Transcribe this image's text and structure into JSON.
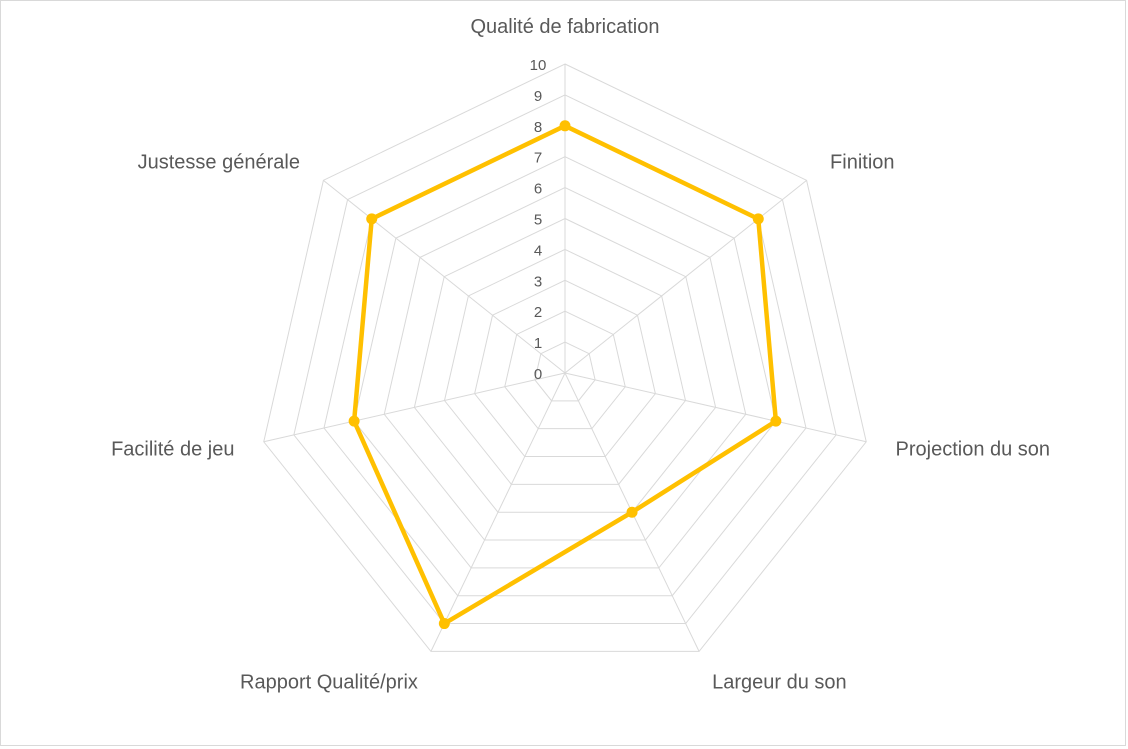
{
  "chart_data": {
    "type": "radar",
    "categories": [
      "Qualité de fabrication",
      "Finition",
      "Projection du son",
      "Largeur du son",
      "Rapport Qualité/prix",
      "Facilité de jeu",
      "Justesse générale"
    ],
    "series": [
      {
        "values": [
          8,
          8,
          7,
          5,
          9,
          7,
          8
        ]
      }
    ],
    "rlim": [
      0,
      10
    ],
    "ticks": [
      "0",
      "1",
      "2",
      "3",
      "4",
      "5",
      "6",
      "7",
      "8",
      "9",
      "10"
    ],
    "grid": true,
    "legend": "none",
    "colors": {
      "series": "#ffc000",
      "grid": "#d9d9d9",
      "text": "#595959"
    }
  }
}
